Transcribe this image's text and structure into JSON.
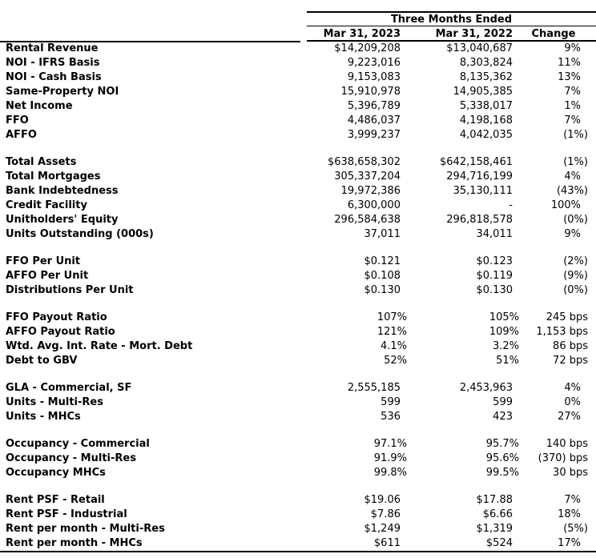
{
  "table": {
    "group_title": "Three Months Ended",
    "columns": [
      "Mar 31, 2023",
      "Mar 31, 2022",
      "Change"
    ],
    "sections": [
      {
        "rows": [
          {
            "label": "Rental Revenue",
            "v2023": "$14,209,208",
            "v2022": "$13,040,687",
            "change": "9%"
          },
          {
            "label": "NOI - IFRS Basis",
            "v2023": "9,223,016",
            "v2022": "8,303,824",
            "change": "11%"
          },
          {
            "label": "NOI - Cash Basis",
            "v2023": "9,153,083",
            "v2022": "8,135,362",
            "change": "13%"
          },
          {
            "label": "Same-Property NOI",
            "v2023": "15,910,978",
            "v2022": "14,905,385",
            "change": "7%"
          },
          {
            "label": "Net Income",
            "v2023": "5,396,789",
            "v2022": "5,338,017",
            "change": "1%"
          },
          {
            "label": "FFO",
            "v2023": "4,486,037",
            "v2022": "4,198,168",
            "change": "7%"
          },
          {
            "label": "AFFO",
            "v2023": "3,999,237",
            "v2022": "4,042,035",
            "change": "(1%)"
          }
        ]
      },
      {
        "rows": [
          {
            "label": "Total Assets",
            "v2023": "$638,658,302",
            "v2022": "$642,158,461",
            "change": "(1%)"
          },
          {
            "label": "Total Mortgages",
            "v2023": "305,337,204",
            "v2022": "294,716,199",
            "change": "4%"
          },
          {
            "label": "Bank Indebtedness",
            "v2023": "19,972,386",
            "v2022": "35,130,111",
            "change": "(43%)"
          },
          {
            "label": "Credit Facility",
            "v2023": "6,300,000",
            "v2022": "-",
            "change": "100%"
          },
          {
            "label": "Unitholders' Equity",
            "v2023": "296,584,638",
            "v2022": "296,818,578",
            "change": "(0%)"
          },
          {
            "label": "Units Outstanding (000s)",
            "v2023": "37,011",
            "v2022": "34,011",
            "change": "9%"
          }
        ]
      },
      {
        "rows": [
          {
            "label": "FFO Per Unit",
            "v2023": "$0.121",
            "v2022": "$0.123",
            "change": "(2%)"
          },
          {
            "label": "AFFO Per Unit",
            "v2023": "$0.108",
            "v2022": "$0.119",
            "change": "(9%)"
          },
          {
            "label": "Distributions Per Unit",
            "v2023": "$0.130",
            "v2022": "$0.130",
            "change": "(0%)"
          }
        ]
      },
      {
        "rows": [
          {
            "label": "FFO Payout Ratio",
            "v2023": "107%",
            "v2022": "105%",
            "change": "245 bps"
          },
          {
            "label": "AFFO Payout Ratio",
            "v2023": "121%",
            "v2022": "109%",
            "change": "1,153 bps"
          },
          {
            "label": "Wtd. Avg. Int. Rate - Mort. Debt",
            "v2023": "4.1%",
            "v2022": "3.2%",
            "change": "86 bps"
          },
          {
            "label": "Debt to GBV",
            "v2023": "52%",
            "v2022": "51%",
            "change": "72 bps"
          }
        ]
      },
      {
        "rows": [
          {
            "label": "GLA - Commercial, SF",
            "v2023": "2,555,185",
            "v2022": "2,453,963",
            "change": "4%"
          },
          {
            "label": "Units - Multi-Res",
            "v2023": "599",
            "v2022": "599",
            "change": "0%"
          },
          {
            "label": "Units - MHCs",
            "v2023": "536",
            "v2022": "423",
            "change": "27%"
          }
        ]
      },
      {
        "rows": [
          {
            "label": "Occupancy - Commercial",
            "v2023": "97.1%",
            "v2022": "95.7%",
            "change": "140 bps"
          },
          {
            "label": "Occupancy - Multi-Res",
            "v2023": "91.9%",
            "v2022": "95.6%",
            "change": "(370) bps"
          },
          {
            "label": "Occupancy MHCs",
            "v2023": "99.8%",
            "v2022": "99.5%",
            "change": "30 bps"
          }
        ]
      },
      {
        "rows": [
          {
            "label": "Rent PSF - Retail",
            "v2023": "$19.06",
            "v2022": "$17.88",
            "change": "7%"
          },
          {
            "label": "Rent PSF - Industrial",
            "v2023": "$7.86",
            "v2022": "$6.66",
            "change": "18%"
          },
          {
            "label": "Rent per month - Multi-Res",
            "v2023": "$1,249",
            "v2022": "$1,319",
            "change": "(5%)"
          },
          {
            "label": "Rent per month - MHCs",
            "v2023": "$611",
            "v2022": "$524",
            "change": "17%"
          }
        ]
      }
    ]
  },
  "colors": {
    "text": "#000000",
    "rule": "#000000",
    "background": "#ffffff"
  }
}
